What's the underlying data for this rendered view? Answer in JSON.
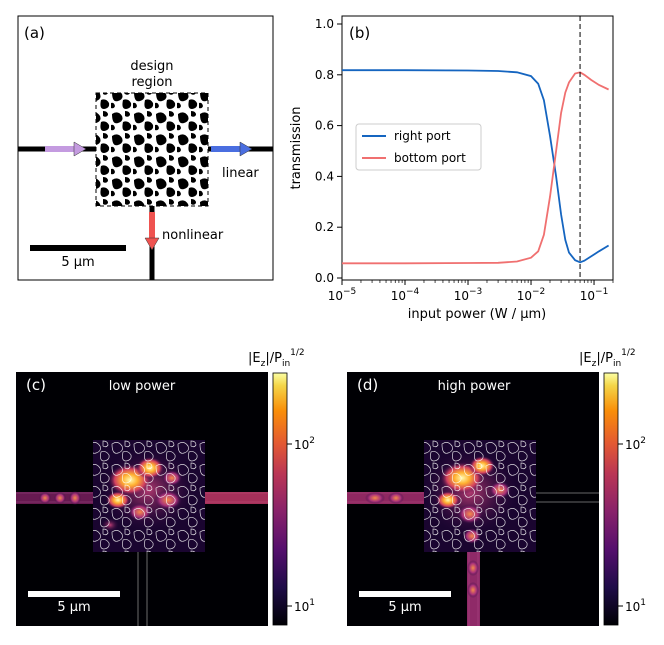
{
  "panels": {
    "a": {
      "label": "(a)",
      "design_label_line1": "design",
      "design_label_line2": "region",
      "linear_label": "linear",
      "nonlinear_label": "nonlinear",
      "scalebar_label": "5 μm"
    },
    "c": {
      "label": "(c)",
      "title": "low power",
      "scalebar_label": "5 μm"
    },
    "d": {
      "label": "(d)",
      "title": "high power",
      "scalebar_label": "5 μm"
    }
  },
  "colorbar": {
    "title_main": "|E",
    "title_sub": "z",
    "title_div": "|/P",
    "title_sub2": "in",
    "title_sup": "1/2",
    "tick_major": "10",
    "tick_major_exp": "2",
    "tick_minor": "10",
    "tick_minor_exp": "1"
  },
  "chart_data": {
    "type": "line",
    "panel_label": "(b)",
    "title": "",
    "xlabel": "input power (W / μm)",
    "ylabel": "transmission",
    "xscale": "log",
    "xlim": [
      1e-05,
      0.2
    ],
    "ylim": [
      0.0,
      1.0
    ],
    "xticks": [
      {
        "value": 1e-05,
        "base": "10",
        "exp": "−5"
      },
      {
        "value": 0.0001,
        "base": "10",
        "exp": "−4"
      },
      {
        "value": 0.001,
        "base": "10",
        "exp": "−3"
      },
      {
        "value": 0.01,
        "base": "10",
        "exp": "−2"
      },
      {
        "value": 0.1,
        "base": "10",
        "exp": "−1"
      }
    ],
    "yticks": [
      "0.0",
      "0.2",
      "0.4",
      "0.6",
      "0.8",
      "1.0"
    ],
    "vline_x": 0.06,
    "legend_position": "center-left",
    "series": [
      {
        "name": "right port",
        "color": "#1565c0",
        "x": [
          1e-05,
          0.0001,
          0.001,
          0.003,
          0.006,
          0.01,
          0.013,
          0.016,
          0.02,
          0.025,
          0.03,
          0.035,
          0.04,
          0.05,
          0.06,
          0.07,
          0.09,
          0.12,
          0.17
        ],
        "y": [
          0.818,
          0.818,
          0.817,
          0.815,
          0.81,
          0.795,
          0.765,
          0.7,
          0.56,
          0.4,
          0.25,
          0.15,
          0.1,
          0.07,
          0.062,
          0.068,
          0.085,
          0.105,
          0.128
        ]
      },
      {
        "name": "bottom port",
        "color": "#f07070",
        "x": [
          1e-05,
          0.0001,
          0.001,
          0.003,
          0.006,
          0.01,
          0.013,
          0.016,
          0.02,
          0.025,
          0.03,
          0.035,
          0.04,
          0.05,
          0.06,
          0.07,
          0.09,
          0.12,
          0.17
        ],
        "y": [
          0.058,
          0.058,
          0.059,
          0.06,
          0.065,
          0.08,
          0.105,
          0.17,
          0.32,
          0.5,
          0.65,
          0.73,
          0.77,
          0.805,
          0.81,
          0.8,
          0.78,
          0.76,
          0.742
        ]
      }
    ]
  }
}
